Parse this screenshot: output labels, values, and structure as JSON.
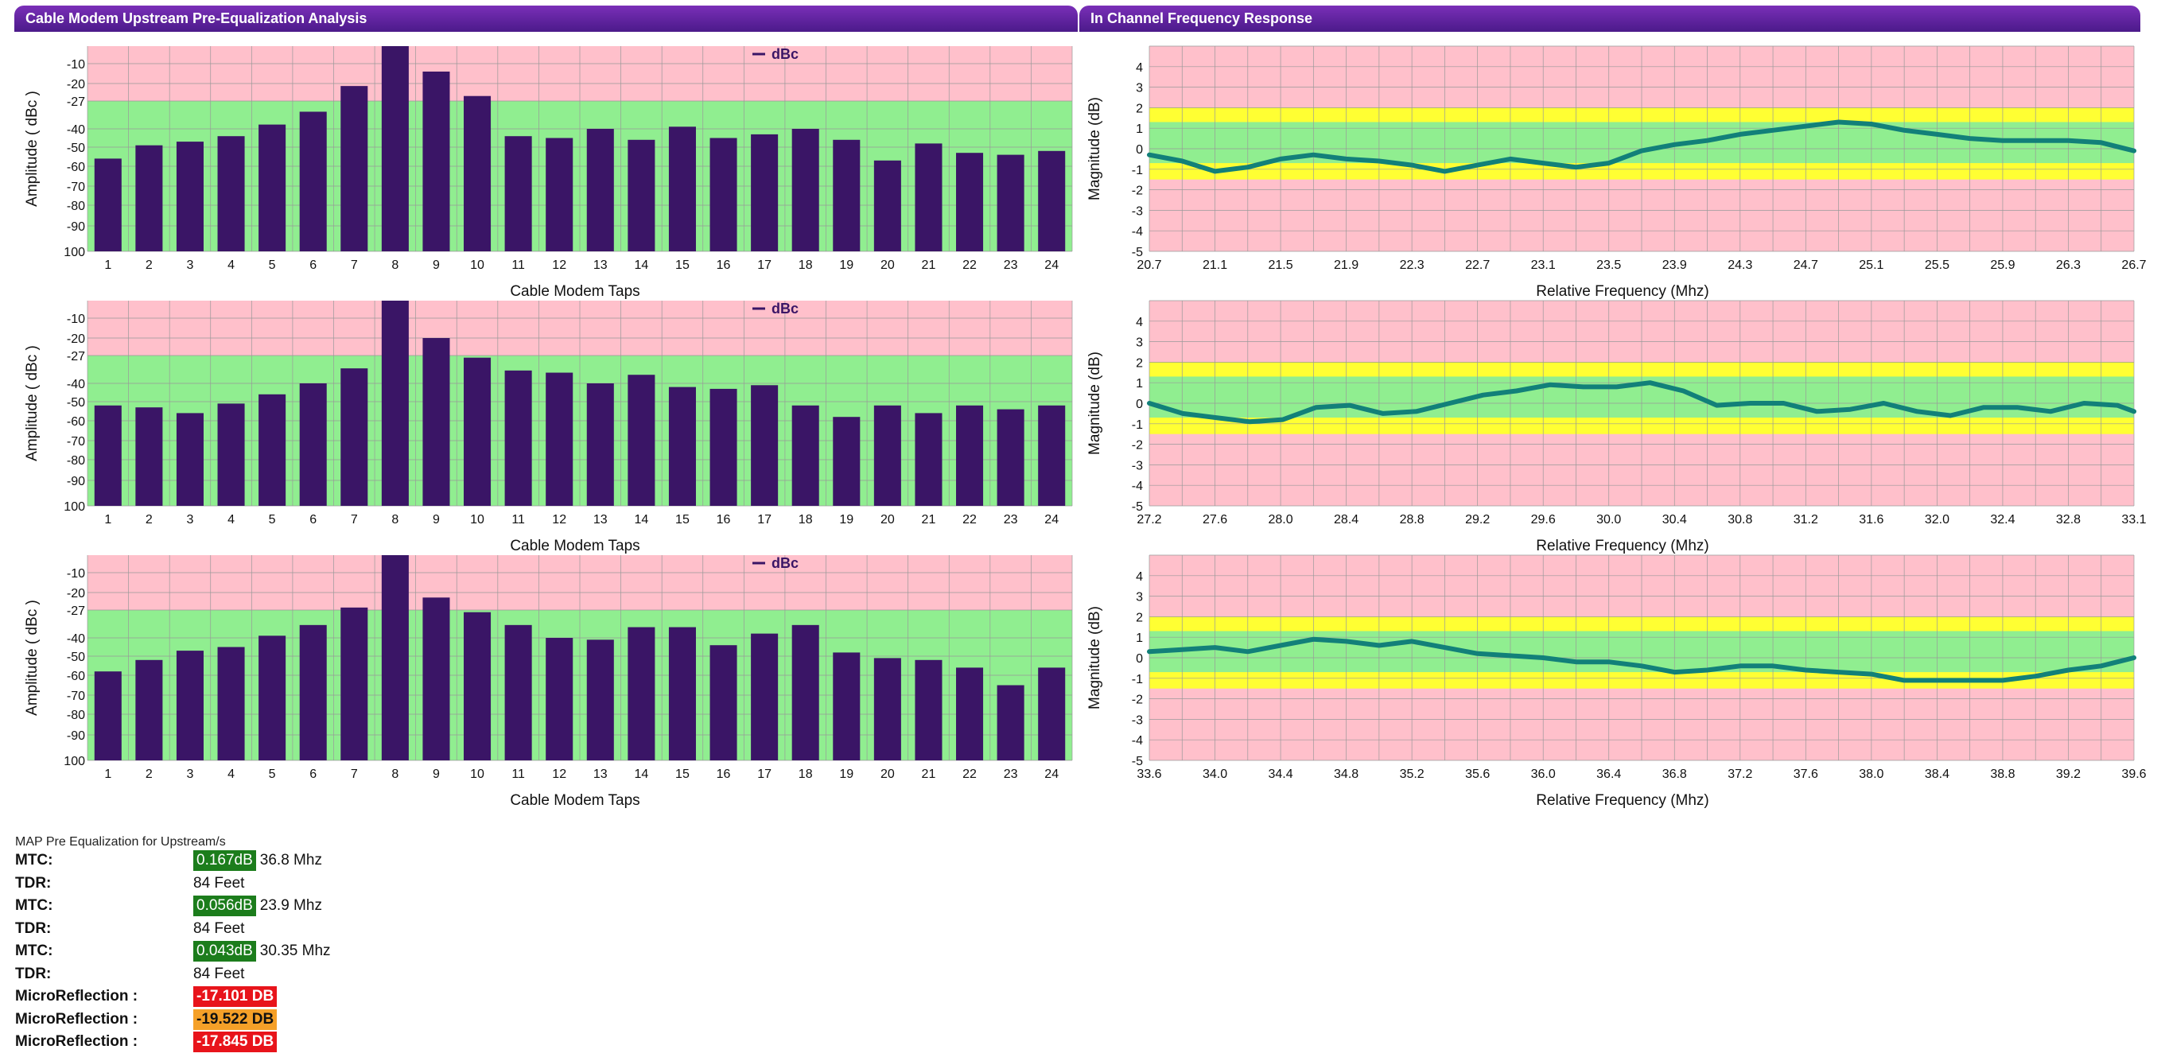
{
  "headers": {
    "left": "Cable Modem Upstream Pre-Equalization Analysis",
    "right": "In Channel Frequency Response"
  },
  "colors": {
    "bar": "#3a1566",
    "zone_red": "#ffc0cb",
    "zone_green": "#90ee90",
    "zone_yellow": "#ffff33",
    "line": "#128079"
  },
  "chart_data": [
    {
      "type": "bar",
      "ylabel": "Amplitude ( dBc )",
      "xlabel": "Cable Modem Taps",
      "legend": "dBc",
      "yticks": [
        "-10",
        "-20",
        "-27",
        "-40",
        "-50",
        "-60",
        "-70",
        "-80",
        "-90",
        "100"
      ],
      "categories": [
        "1",
        "2",
        "3",
        "4",
        "5",
        "6",
        "7",
        "8",
        "9",
        "10",
        "11",
        "12",
        "13",
        "14",
        "15",
        "16",
        "17",
        "18",
        "19",
        "20",
        "21",
        "22",
        "23",
        "24"
      ],
      "values": [
        -56,
        -49,
        -47,
        -44,
        -38,
        -32,
        -21,
        0,
        -14,
        -25,
        -44,
        -45,
        -40,
        -46,
        -39,
        -45,
        -43,
        -40,
        -46,
        -57,
        -48,
        -53,
        -54,
        -52
      ]
    },
    {
      "type": "line",
      "ylabel": "Magnitude (dB)",
      "xlabel": "Relative Frequency (Mhz)",
      "yticks": [
        "4",
        "3",
        "2",
        "1",
        "0",
        "-1",
        "-2",
        "-3",
        "-4",
        "-5"
      ],
      "xticks": [
        "20.7",
        "21.1",
        "21.5",
        "21.9",
        "22.3",
        "22.7",
        "23.1",
        "23.5",
        "23.9",
        "24.3",
        "24.7",
        "25.1",
        "25.5",
        "25.9",
        "26.3",
        "26.7"
      ],
      "xlim": [
        20.7,
        26.7
      ],
      "ylim": [
        -5,
        5
      ],
      "x": [
        20.7,
        20.9,
        21.1,
        21.3,
        21.5,
        21.7,
        21.9,
        22.1,
        22.3,
        22.5,
        22.7,
        22.9,
        23.1,
        23.3,
        23.5,
        23.7,
        23.9,
        24.1,
        24.3,
        24.5,
        24.7,
        24.9,
        25.1,
        25.3,
        25.5,
        25.7,
        25.9,
        26.1,
        26.3,
        26.5,
        26.7
      ],
      "y": [
        -0.3,
        -0.6,
        -1.1,
        -0.9,
        -0.5,
        -0.3,
        -0.5,
        -0.6,
        -0.8,
        -1.1,
        -0.8,
        -0.5,
        -0.7,
        -0.9,
        -0.7,
        -0.1,
        0.2,
        0.4,
        0.7,
        0.9,
        1.1,
        1.3,
        1.2,
        0.9,
        0.7,
        0.5,
        0.4,
        0.4,
        0.4,
        0.3,
        -0.1
      ]
    },
    {
      "type": "bar",
      "ylabel": "Amplitude ( dBc )",
      "xlabel": "Cable Modem Taps",
      "legend": "dBc",
      "yticks": [
        "-10",
        "-20",
        "-27",
        "-40",
        "-50",
        "-60",
        "-70",
        "-80",
        "-90",
        "100"
      ],
      "categories": [
        "1",
        "2",
        "3",
        "4",
        "5",
        "6",
        "7",
        "8",
        "9",
        "10",
        "11",
        "12",
        "13",
        "14",
        "15",
        "16",
        "17",
        "18",
        "19",
        "20",
        "21",
        "22",
        "23",
        "24"
      ],
      "values": [
        -52,
        -53,
        -56,
        -51,
        -46,
        -40,
        -33,
        0,
        -20,
        -28,
        -34,
        -35,
        -40,
        -36,
        -42,
        -43,
        -41,
        -52,
        -58,
        -52,
        -56,
        -52,
        -54,
        -52
      ]
    },
    {
      "type": "line",
      "ylabel": "Magnitude (dB)",
      "xlabel": "Relative Frequency (Mhz)",
      "yticks": [
        "4",
        "3",
        "2",
        "1",
        "0",
        "-1",
        "-2",
        "-3",
        "-4",
        "-5"
      ],
      "xticks": [
        "27.2",
        "27.6",
        "28.0",
        "28.4",
        "28.8",
        "29.2",
        "29.6",
        "30.0",
        "30.4",
        "30.8",
        "31.2",
        "31.6",
        "32.0",
        "32.4",
        "32.8",
        "33.1"
      ],
      "xlim": [
        27.2,
        33.1
      ],
      "ylim": [
        -5,
        5
      ],
      "x": [
        27.2,
        27.4,
        27.6,
        27.8,
        28.0,
        28.2,
        28.4,
        28.6,
        28.8,
        29.0,
        29.2,
        29.4,
        29.6,
        29.8,
        30.0,
        30.2,
        30.4,
        30.6,
        30.8,
        31.0,
        31.2,
        31.4,
        31.6,
        31.8,
        32.0,
        32.2,
        32.4,
        32.6,
        32.8,
        33.0,
        33.1
      ],
      "y": [
        0.0,
        -0.5,
        -0.7,
        -0.9,
        -0.8,
        -0.2,
        -0.1,
        -0.5,
        -0.4,
        0.0,
        0.4,
        0.6,
        0.9,
        0.8,
        0.8,
        1.0,
        0.6,
        -0.1,
        0.0,
        0.0,
        -0.4,
        -0.3,
        0.0,
        -0.4,
        -0.6,
        -0.2,
        -0.2,
        -0.4,
        0.0,
        -0.1,
        -0.4
      ]
    },
    {
      "type": "bar",
      "ylabel": "Amplitude ( dBc )",
      "xlabel": "Cable Modem Taps",
      "legend": "dBc",
      "yticks": [
        "-10",
        "-20",
        "-27",
        "-40",
        "-50",
        "-60",
        "-70",
        "-80",
        "-90",
        "100"
      ],
      "categories": [
        "1",
        "2",
        "3",
        "4",
        "5",
        "6",
        "7",
        "8",
        "9",
        "10",
        "11",
        "12",
        "13",
        "14",
        "15",
        "16",
        "17",
        "18",
        "19",
        "20",
        "21",
        "22",
        "23",
        "24"
      ],
      "values": [
        -58,
        -52,
        -47,
        -45,
        -39,
        -34,
        -26,
        0,
        -22,
        -28,
        -34,
        -40,
        -41,
        -35,
        -35,
        -44,
        -38,
        -34,
        -48,
        -51,
        -52,
        -56,
        -65,
        -56
      ]
    },
    {
      "type": "line",
      "ylabel": "Magnitude (dB)",
      "xlabel": "Relative Frequency (Mhz)",
      "yticks": [
        "4",
        "3",
        "2",
        "1",
        "0",
        "-1",
        "-2",
        "-3",
        "-4",
        "-5"
      ],
      "xticks": [
        "33.6",
        "34.0",
        "34.4",
        "34.8",
        "35.2",
        "35.6",
        "36.0",
        "36.4",
        "36.8",
        "37.2",
        "37.6",
        "38.0",
        "38.4",
        "38.8",
        "39.2",
        "39.6"
      ],
      "xlim": [
        33.6,
        39.6
      ],
      "ylim": [
        -5,
        5
      ],
      "x": [
        33.6,
        33.8,
        34.0,
        34.2,
        34.4,
        34.6,
        34.8,
        35.0,
        35.2,
        35.4,
        35.6,
        35.8,
        36.0,
        36.2,
        36.4,
        36.6,
        36.8,
        37.0,
        37.2,
        37.4,
        37.6,
        37.8,
        38.0,
        38.2,
        38.4,
        38.6,
        38.8,
        39.0,
        39.2,
        39.4,
        39.6
      ],
      "y": [
        0.3,
        0.4,
        0.5,
        0.3,
        0.6,
        0.9,
        0.8,
        0.6,
        0.8,
        0.5,
        0.2,
        0.1,
        0.0,
        -0.2,
        -0.2,
        -0.4,
        -0.7,
        -0.6,
        -0.4,
        -0.4,
        -0.6,
        -0.7,
        -0.8,
        -1.1,
        -1.1,
        -1.1,
        -1.1,
        -0.9,
        -0.6,
        -0.4,
        0.0
      ]
    }
  ],
  "metrics": {
    "title": "MAP Pre Equalization for Upstream/s",
    "rows": [
      {
        "label": "MTC:",
        "badge": "0.167dB",
        "badge_style": "green",
        "value": "36.8 Mhz"
      },
      {
        "label": "TDR:",
        "badge": "",
        "badge_style": "",
        "value": "84 Feet"
      },
      {
        "label": "MTC:",
        "badge": "0.056dB",
        "badge_style": "green",
        "value": "23.9 Mhz"
      },
      {
        "label": "TDR:",
        "badge": "",
        "badge_style": "",
        "value": "84 Feet"
      },
      {
        "label": "MTC:",
        "badge": "0.043dB",
        "badge_style": "green",
        "value": "30.35 Mhz"
      },
      {
        "label": "TDR:",
        "badge": "",
        "badge_style": "",
        "value": "84 Feet"
      },
      {
        "label": "MicroReflection :",
        "badge": "-17.101 DB",
        "badge_style": "red",
        "value": ""
      },
      {
        "label": "MicroReflection :",
        "badge": "-19.522 DB",
        "badge_style": "orange",
        "value": ""
      },
      {
        "label": "MicroReflection :",
        "badge": "-17.845 DB",
        "badge_style": "red",
        "value": ""
      }
    ]
  }
}
